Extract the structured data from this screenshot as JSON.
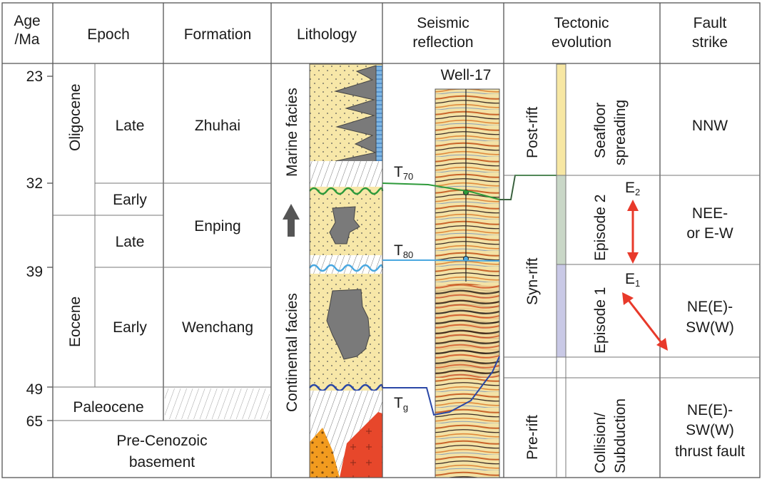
{
  "headers": {
    "age": [
      "Age",
      "/Ma"
    ],
    "epoch": "Epoch",
    "formation": "Formation",
    "lithology": "Lithology",
    "seismic": [
      "Seismic",
      "reflection"
    ],
    "tectonic": [
      "Tectonic",
      "evolution"
    ],
    "fault": [
      "Fault",
      "strike"
    ]
  },
  "ages": [
    "23",
    "32",
    "39",
    "49",
    "65"
  ],
  "epochs": {
    "oligocene": "Oligocene",
    "eocene": "Eocene",
    "paleocene": "Paleocene",
    "basement": [
      "Pre-Cenozoic",
      "basement"
    ]
  },
  "subepochs": {
    "olig_late": "Late",
    "olig_early": "Early",
    "eoc_late": "Late",
    "eoc_early": "Early"
  },
  "formations": {
    "zhuhai": "Zhuhai",
    "enping": "Enping",
    "wenchang": "Wenchang"
  },
  "facies": {
    "marine": "Marine facies",
    "continental": "Continental facies"
  },
  "seismic": {
    "well": "Well-17",
    "horizons": [
      {
        "main": "T",
        "sub": "70"
      },
      {
        "main": "T",
        "sub": "80"
      },
      {
        "main": "T",
        "sub": "g"
      }
    ]
  },
  "tectonic": {
    "stages": {
      "post_rift": "Post-rift",
      "syn_rift": "Syn-rift",
      "pre_rift": "Pre-rift"
    },
    "events": {
      "seafloor": [
        "Seafloor",
        "spreading"
      ],
      "episode2": "Episode 2",
      "episode1": "Episode 1",
      "collision": [
        "Collision/",
        "Subduction"
      ]
    },
    "e_labels": [
      {
        "main": "E",
        "sub": "2"
      },
      {
        "main": "E",
        "sub": "1"
      }
    ],
    "colors": {
      "post_rift": "#f7e7a3",
      "episode2": "#c9d7c7",
      "episode1": "#c9c9e6",
      "arrow": "#e8392a"
    }
  },
  "fault_strike": {
    "post_rift": "NNW",
    "episode2": [
      "NEE-",
      "or E-W"
    ],
    "episode1": [
      "NE(E)-",
      "SW(W)"
    ],
    "pre_rift": [
      "NE(E)-",
      "SW(W)",
      "thrust fault"
    ]
  },
  "horizon_colors": {
    "T70": "#2e9a3a",
    "T80": "#4aa8e0",
    "Tg": "#2a47a6"
  }
}
